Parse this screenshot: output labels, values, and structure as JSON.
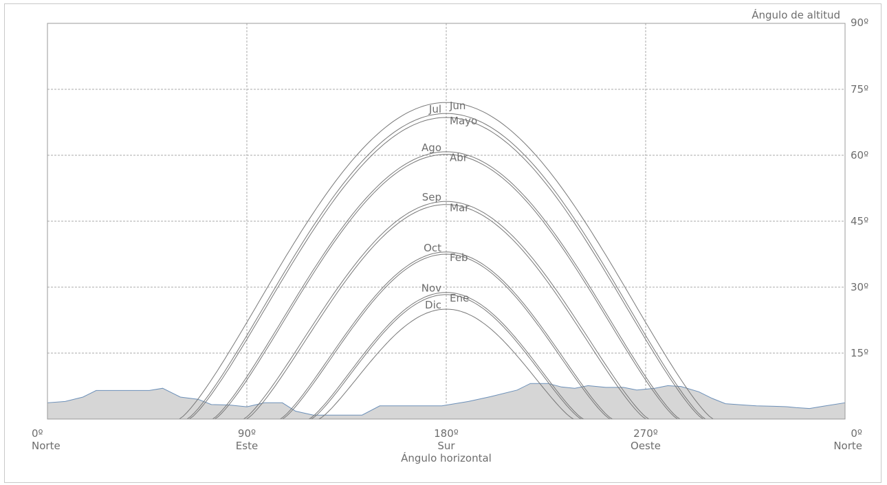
{
  "chart_data": {
    "type": "line",
    "title": "",
    "xlabel": "Ángulo horizontal",
    "ylabel": "Ángulo de altitud",
    "xlim": [
      0,
      360
    ],
    "ylim": [
      0,
      90
    ],
    "grid": true,
    "x_ticks": [
      {
        "value": 0,
        "label": "0º",
        "sublabel": "Norte"
      },
      {
        "value": 90,
        "label": "90º",
        "sublabel": "Este"
      },
      {
        "value": 180,
        "label": "180º",
        "sublabel": "Sur"
      },
      {
        "value": 270,
        "label": "270º",
        "sublabel": "Oeste"
      },
      {
        "value": 360,
        "label": "0º",
        "sublabel": "Norte"
      }
    ],
    "y_ticks": [
      {
        "value": 15,
        "label": "15º"
      },
      {
        "value": 30,
        "label": "30º"
      },
      {
        "value": 45,
        "label": "45º"
      },
      {
        "value": 60,
        "label": "60º"
      },
      {
        "value": 75,
        "label": "75º"
      },
      {
        "value": 90,
        "label": "90º"
      }
    ],
    "horizon": {
      "name": "horizon",
      "fill": "#d6d6d6",
      "stroke": "#6b8fb8",
      "points": [
        [
          0,
          3.7
        ],
        [
          8,
          4.0
        ],
        [
          16,
          5.0
        ],
        [
          22,
          6.5
        ],
        [
          32,
          6.5
        ],
        [
          46,
          6.5
        ],
        [
          52,
          7.0
        ],
        [
          60,
          5.0
        ],
        [
          68,
          4.5
        ],
        [
          74,
          3.3
        ],
        [
          82,
          3.2
        ],
        [
          90,
          2.8
        ],
        [
          98,
          3.7
        ],
        [
          106,
          3.7
        ],
        [
          112,
          1.8
        ],
        [
          120,
          0.9
        ],
        [
          130,
          0.9
        ],
        [
          142,
          0.9
        ],
        [
          150,
          3.0
        ],
        [
          170,
          3.0
        ],
        [
          178,
          3.0
        ],
        [
          190,
          4.0
        ],
        [
          200,
          5.1
        ],
        [
          212,
          6.6
        ],
        [
          218,
          8.1
        ],
        [
          226,
          8.1
        ],
        [
          232,
          7.3
        ],
        [
          238,
          7.0
        ],
        [
          244,
          7.6
        ],
        [
          252,
          7.2
        ],
        [
          260,
          7.2
        ],
        [
          266,
          6.6
        ],
        [
          274,
          7.0
        ],
        [
          280,
          7.6
        ],
        [
          286,
          7.4
        ],
        [
          294,
          6.2
        ],
        [
          300,
          4.7
        ],
        [
          306,
          3.5
        ],
        [
          314,
          3.2
        ],
        [
          320,
          3.0
        ],
        [
          328,
          2.9
        ],
        [
          334,
          2.8
        ],
        [
          338,
          2.6
        ],
        [
          344,
          2.4
        ],
        [
          350,
          2.9
        ],
        [
          360,
          3.7
        ]
      ]
    },
    "series": [
      {
        "name": "Jun",
        "label_side": "right",
        "peak": 72.0,
        "rise_az": 59.5,
        "set_az": 300.5
      },
      {
        "name": "Jul",
        "label_side": "left",
        "peak": 69.5,
        "rise_az": 63.0,
        "set_az": 297.0
      },
      {
        "name": "Mayo",
        "label_side": "right",
        "peak": 68.6,
        "rise_az": 64.0,
        "set_az": 296.0
      },
      {
        "name": "Ago",
        "label_side": "left",
        "peak": 60.8,
        "rise_az": 74.5,
        "set_az": 285.5
      },
      {
        "name": "Abr",
        "label_side": "right",
        "peak": 60.2,
        "rise_az": 75.5,
        "set_az": 284.5
      },
      {
        "name": "Sep",
        "label_side": "left",
        "peak": 49.5,
        "rise_az": 88.5,
        "set_az": 271.5
      },
      {
        "name": "Mar",
        "label_side": "right",
        "peak": 48.8,
        "rise_az": 89.8,
        "set_az": 270.2
      },
      {
        "name": "Oct",
        "label_side": "left",
        "peak": 38.0,
        "rise_az": 105.0,
        "set_az": 255.0
      },
      {
        "name": "Feb",
        "label_side": "right",
        "peak": 37.5,
        "rise_az": 106.0,
        "set_az": 254.0
      },
      {
        "name": "Nov",
        "label_side": "left",
        "peak": 28.8,
        "rise_az": 118.0,
        "set_az": 242.0
      },
      {
        "name": "Ene",
        "label_side": "right",
        "peak": 28.3,
        "rise_az": 119.0,
        "set_az": 241.0
      },
      {
        "name": "Dic",
        "label_side": "left",
        "peak": 25.0,
        "rise_az": 122.5,
        "set_az": 237.5
      }
    ]
  }
}
